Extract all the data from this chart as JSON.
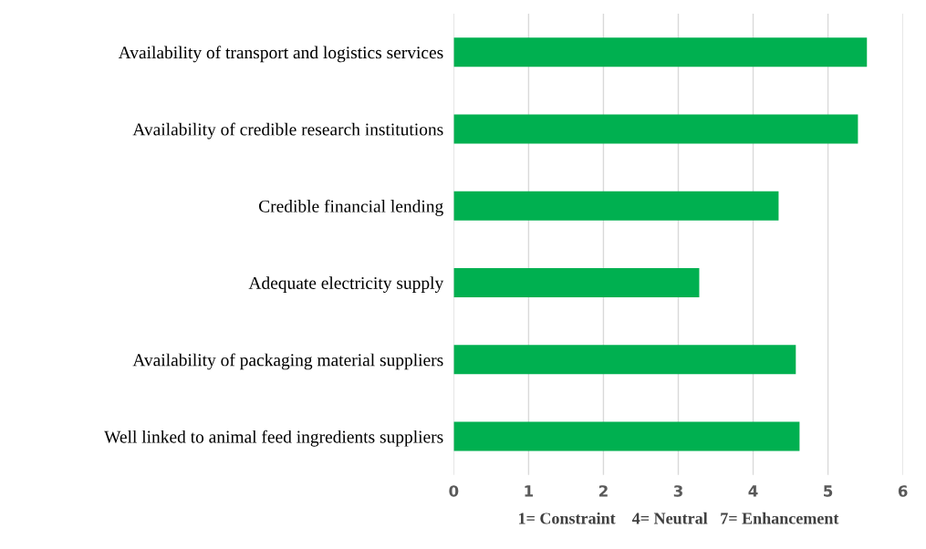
{
  "chart_data": {
    "type": "bar",
    "orientation": "horizontal",
    "categories": [
      "Availability of transport and logistics services",
      "Availability of credible research institutions",
      "Credible financial lending",
      "Adequate electricity supply",
      "Availability of packaging material suppliers",
      "Well linked to animal feed ingredients suppliers"
    ],
    "values": [
      5.52,
      5.4,
      4.34,
      3.28,
      4.57,
      4.62
    ],
    "color": "#00b050",
    "xlim": [
      0,
      6
    ],
    "xticks": [
      0,
      1,
      2,
      3,
      4,
      5,
      6
    ],
    "xlabel": "1= Constraint    4= Neutral   7= Enhancement",
    "grid": "x"
  }
}
